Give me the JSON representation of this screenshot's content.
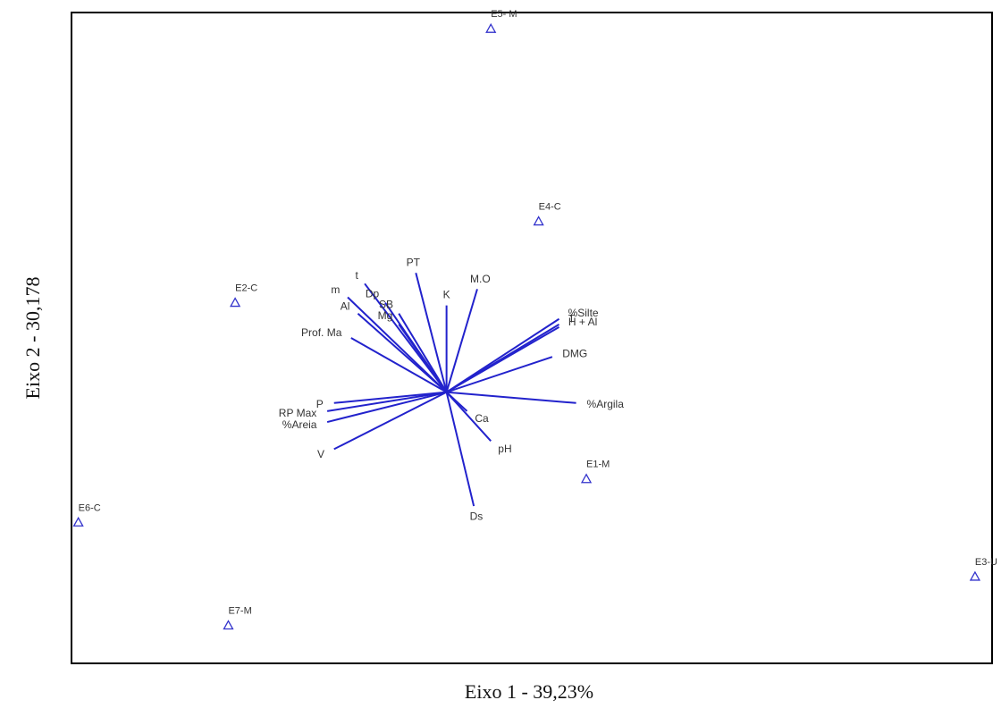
{
  "chart_data": {
    "type": "scatter",
    "subtype": "biplot",
    "title": "",
    "xlabel": "Eixo 1 -  39,23%",
    "ylabel": "Eixo 2 - 30,178",
    "xlim": [
      -1.1,
      1.6
    ],
    "ylim": [
      -1.0,
      1.4
    ],
    "grid": false,
    "legend": "none",
    "colors": {
      "vector": "#2222cc",
      "site": "#3333cc",
      "frame": "#000000"
    },
    "vectors": [
      {
        "label": "PT",
        "x": -0.09,
        "y": 0.44
      },
      {
        "label": "t",
        "x": -0.24,
        "y": 0.4
      },
      {
        "label": "m",
        "x": -0.29,
        "y": 0.35
      },
      {
        "label": "Dp",
        "x": -0.18,
        "y": 0.33
      },
      {
        "label": "SB",
        "x": -0.14,
        "y": 0.29
      },
      {
        "label": "Mg",
        "x": -0.14,
        "y": 0.25
      },
      {
        "label": "Al",
        "x": -0.26,
        "y": 0.29
      },
      {
        "label": "K",
        "x": 0.0,
        "y": 0.32
      },
      {
        "label": "M.O",
        "x": 0.09,
        "y": 0.38
      },
      {
        "label": "Prof. Ma",
        "x": -0.28,
        "y": 0.2
      },
      {
        "label": "%Silte",
        "x": 0.33,
        "y": 0.27
      },
      {
        "label": "T",
        "x": 0.33,
        "y": 0.25
      },
      {
        "label": "H + Al",
        "x": 0.33,
        "y": 0.24
      },
      {
        "label": "DMG",
        "x": 0.31,
        "y": 0.13
      },
      {
        "label": "%Argila",
        "x": 0.38,
        "y": -0.04
      },
      {
        "label": "P",
        "x": -0.33,
        "y": -0.04
      },
      {
        "label": "RP Max",
        "x": -0.35,
        "y": -0.07
      },
      {
        "label": "%Areia",
        "x": -0.35,
        "y": -0.11
      },
      {
        "label": "V",
        "x": -0.33,
        "y": -0.21
      },
      {
        "label": "Ca",
        "x": 0.06,
        "y": -0.07
      },
      {
        "label": "pH",
        "x": 0.13,
        "y": -0.18
      },
      {
        "label": "Ds",
        "x": 0.08,
        "y": -0.42
      }
    ],
    "sites": [
      {
        "label": "E5- M",
        "x": 0.13,
        "y": 1.34
      },
      {
        "label": "E4-C",
        "x": 0.27,
        "y": 0.63
      },
      {
        "label": "E2-C",
        "x": -0.62,
        "y": 0.33
      },
      {
        "label": "E1-M",
        "x": 0.41,
        "y": -0.32
      },
      {
        "label": "E6-C",
        "x": -1.08,
        "y": -0.48
      },
      {
        "label": "E7-M",
        "x": -0.64,
        "y": -0.86
      },
      {
        "label": "E3-U",
        "x": 1.55,
        "y": -0.68
      }
    ]
  }
}
